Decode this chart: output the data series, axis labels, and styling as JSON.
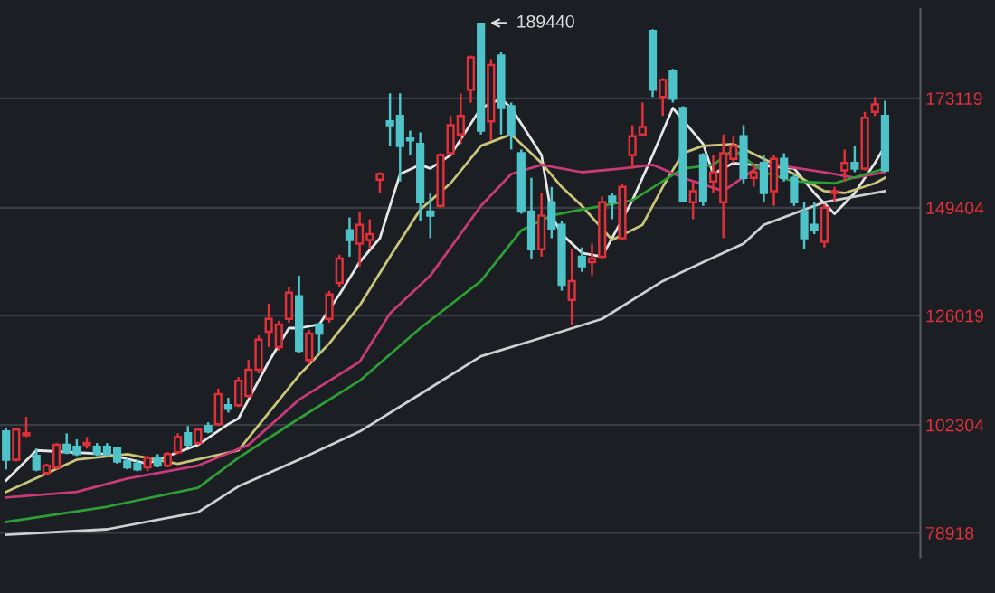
{
  "chart_data": {
    "type": "candlestick",
    "categories": [
      null,
      null,
      null,
      null,
      null,
      null,
      null,
      null,
      null,
      null,
      null,
      null,
      null,
      null,
      null,
      null,
      null,
      null,
      null,
      null,
      null,
      null,
      null,
      null,
      null,
      null,
      null,
      null,
      null,
      null,
      null,
      null,
      null,
      null,
      null,
      null,
      null,
      null,
      null,
      null,
      null,
      null,
      null,
      null,
      null,
      null,
      null,
      null,
      null,
      null,
      null,
      null,
      null,
      null,
      null,
      null,
      null,
      null,
      null,
      null,
      null,
      null,
      null,
      null,
      null,
      null,
      null,
      null,
      null,
      null,
      null,
      null,
      null,
      null,
      null,
      null,
      null,
      null,
      null,
      null,
      null,
      null,
      null,
      null,
      null,
      null,
      null,
      null
    ],
    "ohlc": [
      [
        100900,
        101700,
        92700,
        94800
      ],
      [
        94800,
        101700,
        94400,
        101300
      ],
      [
        100100,
        104100,
        99700,
        100500
      ],
      [
        95600,
        97200,
        92300,
        92700
      ],
      [
        91900,
        93900,
        91500,
        93500
      ],
      [
        93100,
        98400,
        92700,
        98000
      ],
      [
        98000,
        100500,
        96000,
        96400
      ],
      [
        97600,
        99200,
        95600,
        96000
      ],
      [
        98000,
        99700,
        97200,
        98400
      ],
      [
        97600,
        98400,
        95600,
        96000
      ],
      [
        97600,
        98400,
        95600,
        96000
      ],
      [
        97200,
        97600,
        93900,
        94400
      ],
      [
        94400,
        95200,
        92700,
        93100
      ],
      [
        93900,
        94800,
        92300,
        92700
      ],
      [
        93100,
        95600,
        92300,
        95200
      ],
      [
        95200,
        96000,
        93100,
        93500
      ],
      [
        93500,
        96400,
        93100,
        96000
      ],
      [
        96400,
        100500,
        96000,
        99700
      ],
      [
        100500,
        102100,
        97600,
        98000
      ],
      [
        98400,
        101700,
        98000,
        101300
      ],
      [
        102100,
        102900,
        100500,
        100900
      ],
      [
        102500,
        110200,
        102100,
        109000
      ],
      [
        106600,
        108200,
        105000,
        105800
      ],
      [
        106600,
        112700,
        106200,
        111900
      ],
      [
        108600,
        116400,
        108200,
        114300
      ],
      [
        114300,
        121700,
        113500,
        120800
      ],
      [
        122500,
        128600,
        119200,
        125300
      ],
      [
        119200,
        124900,
        118400,
        124100
      ],
      [
        125300,
        132300,
        124500,
        131000
      ],
      [
        130200,
        134700,
        118000,
        118400
      ],
      [
        116400,
        122900,
        115500,
        122100
      ],
      [
        124100,
        124500,
        118000,
        122100
      ],
      [
        125300,
        131400,
        124500,
        130600
      ],
      [
        133100,
        139200,
        132300,
        138400
      ],
      [
        144500,
        147300,
        138800,
        142400
      ],
      [
        141600,
        148600,
        136700,
        145700
      ],
      [
        142400,
        146900,
        140400,
        143700
      ],
      [
        155500,
        157100,
        152600,
        156700
      ],
      [
        168100,
        174200,
        162800,
        167300
      ],
      [
        169300,
        174200,
        155100,
        162800
      ],
      [
        164400,
        166100,
        160800,
        164000
      ],
      [
        163200,
        165700,
        146500,
        150600
      ],
      [
        148600,
        152600,
        142800,
        147700
      ],
      [
        149800,
        161200,
        149400,
        160800
      ],
      [
        161200,
        169300,
        161200,
        167300
      ],
      [
        165300,
        174200,
        163200,
        169300
      ],
      [
        175000,
        182400,
        172200,
        182000
      ],
      [
        189300,
        189440,
        165300,
        166100
      ],
      [
        168100,
        181600,
        164000,
        180300
      ],
      [
        182400,
        183200,
        165300,
        171000
      ],
      [
        171400,
        172200,
        162000,
        165300
      ],
      [
        161200,
        162000,
        148100,
        148600
      ],
      [
        148600,
        155900,
        138400,
        140400
      ],
      [
        140400,
        152600,
        138800,
        147700
      ],
      [
        150600,
        153900,
        142800,
        144900
      ],
      [
        145700,
        146500,
        131400,
        132700
      ],
      [
        129400,
        140400,
        124100,
        133500
      ],
      [
        138800,
        140800,
        135500,
        136700
      ],
      [
        137600,
        141600,
        134700,
        138400
      ],
      [
        138800,
        151800,
        138400,
        150600
      ],
      [
        151800,
        152600,
        146900,
        150600
      ],
      [
        142800,
        154700,
        142400,
        153900
      ],
      [
        160800,
        167300,
        157900,
        164900
      ],
      [
        165300,
        172200,
        164900,
        166900
      ],
      [
        187700,
        188100,
        173400,
        175000
      ],
      [
        173400,
        177500,
        169300,
        177100
      ],
      [
        179100,
        179500,
        172200,
        173000
      ],
      [
        171000,
        171400,
        150600,
        151000
      ],
      [
        150600,
        155100,
        146900,
        153000
      ],
      [
        160800,
        161200,
        149800,
        151000
      ],
      [
        155100,
        160800,
        152600,
        157100
      ],
      [
        150600,
        165300,
        142800,
        161200
      ],
      [
        160000,
        164900,
        159100,
        162800
      ],
      [
        164900,
        167300,
        154700,
        155900
      ],
      [
        155900,
        159100,
        153900,
        157100
      ],
      [
        159100,
        160800,
        150600,
        152600
      ],
      [
        153000,
        160800,
        149800,
        160000
      ],
      [
        160000,
        161200,
        155100,
        155900
      ],
      [
        155900,
        156700,
        149800,
        150600
      ],
      [
        148600,
        150600,
        140400,
        142800
      ],
      [
        145700,
        150600,
        143700,
        144500
      ],
      [
        142000,
        150200,
        140800,
        149400
      ],
      [
        152600,
        153900,
        150600,
        153000
      ],
      [
        157500,
        162000,
        155100,
        159100
      ],
      [
        159100,
        162800,
        157100,
        157900
      ],
      [
        157900,
        170200,
        157500,
        168900
      ],
      [
        170200,
        173400,
        169300,
        171800
      ],
      [
        169300,
        172600,
        157100,
        157500
      ]
    ],
    "colors": [
      "#4ec3c9",
      "#e0303a",
      "#e0303a",
      "#4ec3c9",
      "#e0303a",
      "#e0303a",
      "#4ec3c9",
      "#4ec3c9",
      "#e0303a",
      "#4ec3c9",
      "#4ec3c9",
      "#4ec3c9",
      "#4ec3c9",
      "#4ec3c9",
      "#e0303a",
      "#4ec3c9",
      "#e0303a",
      "#e0303a",
      "#4ec3c9",
      "#e0303a",
      "#4ec3c9",
      "#e0303a",
      "#4ec3c9",
      "#e0303a",
      "#e0303a",
      "#e0303a",
      "#e0303a",
      "#e0303a",
      "#e0303a",
      "#4ec3c9",
      "#e0303a",
      "#4ec3c9",
      "#e0303a",
      "#e0303a",
      "#4ec3c9",
      "#e0303a",
      "#e0303a",
      "#e0303a",
      "#4ec3c9",
      "#4ec3c9",
      "#4ec3c9",
      "#4ec3c9",
      "#4ec3c9",
      "#e0303a",
      "#e0303a",
      "#e0303a",
      "#e0303a",
      "#4ec3c9",
      "#e0303a",
      "#4ec3c9",
      "#4ec3c9",
      "#4ec3c9",
      "#4ec3c9",
      "#e0303a",
      "#4ec3c9",
      "#4ec3c9",
      "#e0303a",
      "#4ec3c9",
      "#e0303a",
      "#e0303a",
      "#4ec3c9",
      "#e0303a",
      "#e0303a",
      "#e0303a",
      "#4ec3c9",
      "#e0303a",
      "#4ec3c9",
      "#4ec3c9",
      "#e0303a",
      "#4ec3c9",
      "#e0303a",
      "#e0303a",
      "#e0303a",
      "#4ec3c9",
      "#e0303a",
      "#4ec3c9",
      "#e0303a",
      "#4ec3c9",
      "#4ec3c9",
      "#4ec3c9",
      "#4ec3c9",
      "#e0303a",
      "#e0303a",
      "#e0303a",
      "#4ec3c9",
      "#e0303a",
      "#e0303a",
      "#4ec3c9"
    ],
    "series": [
      {
        "type": "line",
        "color": "#e6e6e6",
        "values": [
          90300,
          null,
          null,
          96800,
          null,
          null,
          null,
          null,
          null,
          null,
          96000,
          null,
          null,
          null,
          93900,
          null,
          95600,
          null,
          null,
          98000,
          null,
          null,
          102500,
          103700,
          null,
          null,
          116000,
          null,
          123300,
          123300,
          null,
          124100,
          null,
          130600,
          null,
          137600,
          null,
          142800,
          null,
          156700,
          null,
          158700,
          157900,
          null,
          160800,
          null,
          null,
          171000,
          null,
          173000,
          171000,
          null,
          null,
          160800,
          147700,
          143700,
          null,
          139600,
          null,
          138800,
          null,
          null,
          151000,
          null,
          160800,
          null,
          171000,
          null,
          null,
          163200,
          156700,
          null,
          159100,
          null,
          158700,
          null,
          null,
          null,
          157900,
          null,
          152600,
          null,
          148100,
          null,
          152600,
          null,
          159100,
          162800
        ]
      },
      {
        "type": "line",
        "color": "#c9c57a",
        "values": [
          87800,
          null,
          null,
          null,
          null,
          null,
          null,
          94800,
          null,
          null,
          null,
          null,
          96000,
          null,
          null,
          null,
          null,
          93900,
          null,
          null,
          null,
          null,
          null,
          96800,
          null,
          null,
          null,
          null,
          null,
          113100,
          null,
          null,
          120000,
          null,
          null,
          128200,
          null,
          null,
          138800,
          null,
          null,
          149000,
          null,
          null,
          154700,
          null,
          null,
          162800,
          null,
          null,
          165300,
          null,
          null,
          159100,
          null,
          153900,
          null,
          149800,
          null,
          null,
          142400,
          null,
          null,
          145700,
          null,
          153900,
          null,
          161200,
          null,
          162800,
          null,
          null,
          163200,
          null,
          null,
          160000,
          null,
          null,
          156700,
          null,
          null,
          153000,
          null,
          152600,
          null,
          null,
          154700,
          155900
        ]
      },
      {
        "type": "line",
        "color": "#c83a78",
        "values": [
          86600,
          null,
          null,
          null,
          null,
          null,
          null,
          87800,
          null,
          null,
          null,
          null,
          90700,
          null,
          null,
          null,
          null,
          null,
          null,
          93500,
          null,
          null,
          null,
          null,
          98000,
          null,
          null,
          null,
          null,
          107800,
          null,
          null,
          null,
          null,
          null,
          116000,
          null,
          null,
          126500,
          null,
          null,
          null,
          134700,
          null,
          null,
          null,
          null,
          149800,
          null,
          null,
          156700,
          null,
          null,
          158700,
          null,
          null,
          null,
          157100,
          null,
          null,
          null,
          157900,
          null,
          null,
          158700,
          null,
          null,
          155900,
          null,
          null,
          null,
          153000,
          null,
          null,
          null,
          159100,
          null,
          null,
          null,
          null,
          null,
          157100,
          null,
          null,
          155900,
          null,
          null,
          157100
        ]
      },
      {
        "type": "line",
        "color": "#2e9e36",
        "values": [
          81300,
          null,
          null,
          null,
          null,
          null,
          null,
          null,
          null,
          null,
          84600,
          null,
          null,
          null,
          null,
          null,
          null,
          null,
          null,
          88700,
          null,
          null,
          null,
          95200,
          null,
          null,
          null,
          null,
          null,
          103700,
          null,
          null,
          null,
          null,
          null,
          111900,
          null,
          null,
          null,
          null,
          null,
          123300,
          null,
          null,
          null,
          null,
          null,
          133500,
          null,
          null,
          null,
          144500,
          null,
          null,
          147700,
          null,
          148600,
          null,
          null,
          null,
          null,
          null,
          151000,
          null,
          null,
          null,
          null,
          157900,
          null,
          null,
          158700,
          null,
          162000,
          null,
          null,
          157100,
          null,
          null,
          155100,
          null,
          null,
          null,
          154700,
          null,
          null,
          null,
          null,
          157900
        ]
      },
      {
        "type": "line",
        "color": "#cfcfcf",
        "values": [
          78500,
          null,
          null,
          null,
          null,
          null,
          null,
          null,
          null,
          null,
          79700,
          null,
          null,
          null,
          null,
          null,
          null,
          null,
          null,
          83400,
          null,
          null,
          null,
          89000,
          null,
          null,
          null,
          null,
          null,
          94800,
          null,
          null,
          null,
          null,
          null,
          100900,
          null,
          null,
          null,
          null,
          null,
          109000,
          null,
          null,
          null,
          null,
          null,
          117200,
          null,
          null,
          null,
          null,
          null,
          121200,
          null,
          null,
          null,
          null,
          null,
          125300,
          null,
          null,
          null,
          null,
          null,
          133500,
          null,
          null,
          null,
          137600,
          null,
          null,
          null,
          141600,
          null,
          145700,
          null,
          null,
          null,
          null,
          null,
          150600,
          null,
          null,
          null,
          null,
          null,
          153000
        ]
      }
    ],
    "ylim": [
      73600,
      192500
    ],
    "yticks": [
      78918,
      102304,
      126019,
      149404,
      173119
    ],
    "grid": "y",
    "tick_labels": "y",
    "annotations": [
      "189440"
    ]
  }
}
